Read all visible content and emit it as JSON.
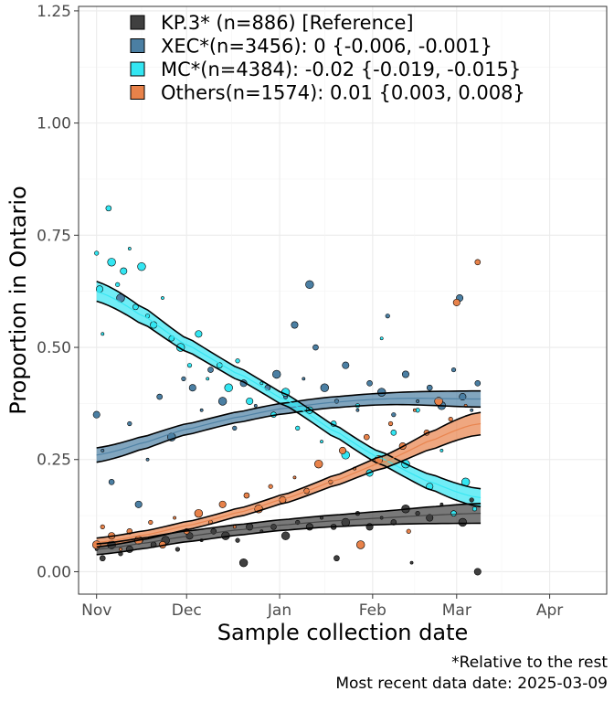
{
  "chart_data": {
    "type": "scatter",
    "xlabel": "Sample collection date",
    "ylabel": "Proportion in Ontario",
    "x_range": [
      "2024-10-26",
      "2025-04-20"
    ],
    "ylim": [
      -0.05,
      1.26
    ],
    "x_ticks": [
      {
        "date": "2024-11-01",
        "label": "Nov"
      },
      {
        "date": "2024-12-01",
        "label": "Dec"
      },
      {
        "date": "2025-01-01",
        "label": "Jan"
      },
      {
        "date": "2025-02-01",
        "label": "Feb"
      },
      {
        "date": "2025-03-01",
        "label": "Mar"
      },
      {
        "date": "2025-04-01",
        "label": "Apr"
      }
    ],
    "y_ticks": [
      {
        "value": 0,
        "label": "0.00"
      },
      {
        "value": 0.25,
        "label": "0.25"
      },
      {
        "value": 0.5,
        "label": "0.50"
      },
      {
        "value": 0.75,
        "label": "0.75"
      },
      {
        "value": 1.0,
        "label": "1.00"
      },
      {
        "value": 1.25,
        "label": "1.25"
      }
    ],
    "grid": true,
    "legend_position": "top-left",
    "caption": [
      "*Relative to the rest",
      "Most recent data date: 2025-03-09"
    ],
    "series": [
      {
        "name": "KP.3* (n=886)  [Reference]",
        "color": "#404040",
        "fit_start": "2024-11-01",
        "fit_end": "2025-03-09",
        "fit": [
          0.05,
          0.08,
          0.105,
          0.12,
          0.13
        ],
        "band": [
          0.012,
          0.012,
          0.012,
          0.015,
          0.022
        ],
        "points": [
          [
            "2024-11-01",
            0.05
          ],
          [
            "2024-11-03",
            0.03
          ],
          [
            "2024-11-06",
            0.06
          ],
          [
            "2024-11-09",
            0.04
          ],
          [
            "2024-11-12",
            0.05
          ],
          [
            "2024-11-16",
            0.07
          ],
          [
            "2024-11-20",
            0.06
          ],
          [
            "2024-11-24",
            0.07
          ],
          [
            "2024-11-28",
            0.05
          ],
          [
            "2024-12-02",
            0.08
          ],
          [
            "2024-12-06",
            0.07
          ],
          [
            "2024-12-10",
            0.09
          ],
          [
            "2024-12-14",
            0.08
          ],
          [
            "2024-12-18",
            0.07
          ],
          [
            "2024-12-22",
            0.1
          ],
          [
            "2024-12-26",
            0.09
          ],
          [
            "2024-12-30",
            0.1
          ],
          [
            "2025-01-03",
            0.08
          ],
          [
            "2025-01-07",
            0.11
          ],
          [
            "2025-01-11",
            0.1
          ],
          [
            "2025-01-15",
            0.12
          ],
          [
            "2025-01-19",
            0.1
          ],
          [
            "2025-01-23",
            0.11
          ],
          [
            "2025-01-27",
            0.13
          ],
          [
            "2025-01-31",
            0.1
          ],
          [
            "2025-02-04",
            0.12
          ],
          [
            "2025-02-08",
            0.11
          ],
          [
            "2025-02-12",
            0.14
          ],
          [
            "2025-02-16",
            0.13
          ],
          [
            "2025-02-20",
            0.12
          ],
          [
            "2025-02-24",
            0.15
          ],
          [
            "2025-02-28",
            0.13
          ],
          [
            "2025-03-03",
            0.11
          ],
          [
            "2025-03-06",
            0.16
          ],
          [
            "2025-03-08",
            0.0
          ],
          [
            "2025-02-14",
            0.02
          ],
          [
            "2025-01-20",
            0.03
          ],
          [
            "2024-12-20",
            0.02
          ]
        ]
      },
      {
        "name": "XEC*(n=3456): 0 {-0.006, -0.001}",
        "color": "#4b7fa3",
        "fit_start": "2024-11-01",
        "fit_end": "2025-03-09",
        "fit": [
          0.26,
          0.32,
          0.365,
          0.385,
          0.385
        ],
        "band": [
          0.016,
          0.012,
          0.012,
          0.013,
          0.018
        ],
        "points": [
          [
            "2024-11-01",
            0.35
          ],
          [
            "2024-11-03",
            0.27
          ],
          [
            "2024-11-06",
            0.2
          ],
          [
            "2024-11-09",
            0.61
          ],
          [
            "2024-11-12",
            0.33
          ],
          [
            "2024-11-15",
            0.15
          ],
          [
            "2024-11-18",
            0.25
          ],
          [
            "2024-11-22",
            0.39
          ],
          [
            "2024-11-26",
            0.3
          ],
          [
            "2024-11-30",
            0.43
          ],
          [
            "2024-12-03",
            0.41
          ],
          [
            "2024-12-06",
            0.36
          ],
          [
            "2024-12-09",
            0.45
          ],
          [
            "2024-12-13",
            0.38
          ],
          [
            "2024-12-17",
            0.32
          ],
          [
            "2024-12-20",
            0.42
          ],
          [
            "2024-12-24",
            0.37
          ],
          [
            "2024-12-28",
            0.41
          ],
          [
            "2024-12-31",
            0.44
          ],
          [
            "2025-01-03",
            0.39
          ],
          [
            "2025-01-06",
            0.55
          ],
          [
            "2025-01-09",
            0.43
          ],
          [
            "2025-01-13",
            0.5
          ],
          [
            "2025-01-16",
            0.41
          ],
          [
            "2025-01-20",
            0.38
          ],
          [
            "2025-01-23",
            0.46
          ],
          [
            "2025-01-27",
            0.36
          ],
          [
            "2025-01-31",
            0.42
          ],
          [
            "2025-02-04",
            0.4
          ],
          [
            "2025-02-08",
            0.35
          ],
          [
            "2025-02-12",
            0.44
          ],
          [
            "2025-02-16",
            0.38
          ],
          [
            "2025-02-20",
            0.41
          ],
          [
            "2025-02-24",
            0.37
          ],
          [
            "2025-02-28",
            0.45
          ],
          [
            "2025-03-03",
            0.39
          ],
          [
            "2025-03-06",
            0.36
          ],
          [
            "2025-03-08",
            0.42
          ],
          [
            "2025-01-11",
            0.64
          ],
          [
            "2025-02-06",
            0.57
          ],
          [
            "2025-03-02",
            0.61
          ]
        ]
      },
      {
        "name": "MC*(n=4384): -0.02 {-0.019, -0.015}",
        "color": "#33e6f2",
        "fit_start": "2024-11-01",
        "fit_end": "2025-03-09",
        "fit": [
          0.625,
          0.5,
          0.38,
          0.25,
          0.165
        ],
        "band": [
          0.022,
          0.015,
          0.013,
          0.014,
          0.02
        ],
        "points": [
          [
            "2024-11-01",
            0.71
          ],
          [
            "2024-11-02",
            0.63
          ],
          [
            "2024-11-03",
            0.53
          ],
          [
            "2024-11-05",
            0.81
          ],
          [
            "2024-11-06",
            0.69
          ],
          [
            "2024-11-08",
            0.64
          ],
          [
            "2024-11-10",
            0.67
          ],
          [
            "2024-11-12",
            0.72
          ],
          [
            "2024-11-14",
            0.59
          ],
          [
            "2024-11-16",
            0.68
          ],
          [
            "2024-11-18",
            0.57
          ],
          [
            "2024-11-20",
            0.55
          ],
          [
            "2024-11-23",
            0.61
          ],
          [
            "2024-11-26",
            0.52
          ],
          [
            "2024-11-29",
            0.5
          ],
          [
            "2024-12-02",
            0.46
          ],
          [
            "2024-12-05",
            0.53
          ],
          [
            "2024-12-08",
            0.43
          ],
          [
            "2024-12-12",
            0.46
          ],
          [
            "2024-12-15",
            0.41
          ],
          [
            "2024-12-18",
            0.47
          ],
          [
            "2024-12-22",
            0.38
          ],
          [
            "2024-12-26",
            0.42
          ],
          [
            "2024-12-30",
            0.35
          ],
          [
            "2025-01-03",
            0.4
          ],
          [
            "2025-01-07",
            0.32
          ],
          [
            "2025-01-11",
            0.36
          ],
          [
            "2025-01-15",
            0.29
          ],
          [
            "2025-01-19",
            0.33
          ],
          [
            "2025-01-23",
            0.26
          ],
          [
            "2025-01-27",
            0.37
          ],
          [
            "2025-01-31",
            0.22
          ],
          [
            "2025-02-04",
            0.52
          ],
          [
            "2025-02-08",
            0.31
          ],
          [
            "2025-02-12",
            0.24
          ],
          [
            "2025-02-16",
            0.36
          ],
          [
            "2025-02-20",
            0.19
          ],
          [
            "2025-02-24",
            0.27
          ],
          [
            "2025-02-28",
            0.13
          ],
          [
            "2025-03-04",
            0.2
          ],
          [
            "2025-03-07",
            0.14
          ]
        ]
      },
      {
        "name": "Others(n=1574): 0.01 {0.003, 0.008}",
        "color": "#e8824a",
        "fit_start": "2024-11-01",
        "fit_end": "2025-03-09",
        "fit": [
          0.065,
          0.105,
          0.165,
          0.245,
          0.33
        ],
        "band": [
          0.01,
          0.009,
          0.01,
          0.014,
          0.025
        ],
        "points": [
          [
            "2024-11-01",
            0.06
          ],
          [
            "2024-11-03",
            0.1
          ],
          [
            "2024-11-06",
            0.08
          ],
          [
            "2024-11-09",
            0.05
          ],
          [
            "2024-11-12",
            0.09
          ],
          [
            "2024-11-15",
            0.07
          ],
          [
            "2024-11-19",
            0.11
          ],
          [
            "2024-11-23",
            0.06
          ],
          [
            "2024-11-27",
            0.12
          ],
          [
            "2024-12-01",
            0.09
          ],
          [
            "2024-12-05",
            0.13
          ],
          [
            "2024-12-09",
            0.11
          ],
          [
            "2024-12-13",
            0.15
          ],
          [
            "2024-12-17",
            0.1
          ],
          [
            "2024-12-21",
            0.17
          ],
          [
            "2024-12-25",
            0.14
          ],
          [
            "2024-12-29",
            0.19
          ],
          [
            "2025-01-02",
            0.16
          ],
          [
            "2025-01-06",
            0.21
          ],
          [
            "2025-01-10",
            0.18
          ],
          [
            "2025-01-14",
            0.24
          ],
          [
            "2025-01-18",
            0.2
          ],
          [
            "2025-01-22",
            0.27
          ],
          [
            "2025-01-26",
            0.23
          ],
          [
            "2025-01-30",
            0.3
          ],
          [
            "2025-02-03",
            0.25
          ],
          [
            "2025-02-07",
            0.33
          ],
          [
            "2025-02-11",
            0.28
          ],
          [
            "2025-02-15",
            0.36
          ],
          [
            "2025-02-19",
            0.31
          ],
          [
            "2025-02-23",
            0.38
          ],
          [
            "2025-02-27",
            0.34
          ],
          [
            "2025-03-01",
            0.6
          ],
          [
            "2025-03-04",
            0.37
          ],
          [
            "2025-03-08",
            0.69
          ],
          [
            "2025-01-28",
            0.06
          ],
          [
            "2025-02-13",
            0.09
          ]
        ]
      }
    ]
  }
}
